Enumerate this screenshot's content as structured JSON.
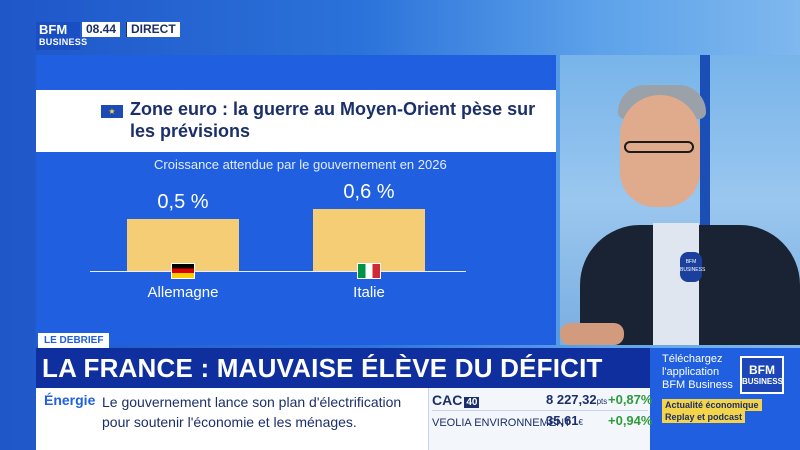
{
  "header": {
    "logo_line1": "BFM",
    "logo_line2": "BUSINESS",
    "time": "08.44",
    "live_label": "DIRECT"
  },
  "panel": {
    "flag_icon": "eu-flag-icon",
    "headline": "Zone euro : la guerre au Moyen-Orient pèse sur les prévisions",
    "subtitle": "Croissance attendue par le gouvernement en 2026"
  },
  "chart_data": {
    "type": "bar",
    "title": "Zone euro : la guerre au Moyen-Orient pèse sur les prévisions",
    "subtitle": "Croissance attendue par le gouvernement en 2026",
    "categories": [
      "Allemagne",
      "Italie"
    ],
    "values": [
      0.5,
      0.6
    ],
    "value_labels": [
      "0,5 %",
      "0,6 %"
    ],
    "unit": "%",
    "ylim": [
      0,
      0.6
    ],
    "bar_color": "#f4cd74",
    "grid": false
  },
  "presenter": {
    "mic_label": "BFM BUSINESS"
  },
  "lower_third": {
    "program": "LE DEBRIEF",
    "title": "LA FRANCE : MAUVAISE ÉLÈVE DU DÉFICIT"
  },
  "ticker": {
    "category": "Énergie",
    "text": "Le gouvernement lance son plan d'électrification pour soutenir l'économie et les ménages."
  },
  "market": {
    "rows": [
      {
        "name": "CAC",
        "badge": "40",
        "value": "8 227,32",
        "unit": "pts",
        "change": "+0,87%"
      },
      {
        "name": "VEOLIA ENVIRONNEMENT",
        "badge": "",
        "value": "35,61",
        "unit": "€",
        "change": "+0,94%"
      }
    ]
  },
  "promo": {
    "text": "Téléchargez l'application BFM Business",
    "logo_line1": "BFM",
    "logo_line2": "BUSINESS",
    "tag1": "Actualité économique",
    "tag2": "Replay et podcast"
  },
  "colors": {
    "panel_blue": "#1f5fe0",
    "title_band": "#0f2f9e",
    "bar": "#f4cd74",
    "positive": "#2e9b3a"
  }
}
